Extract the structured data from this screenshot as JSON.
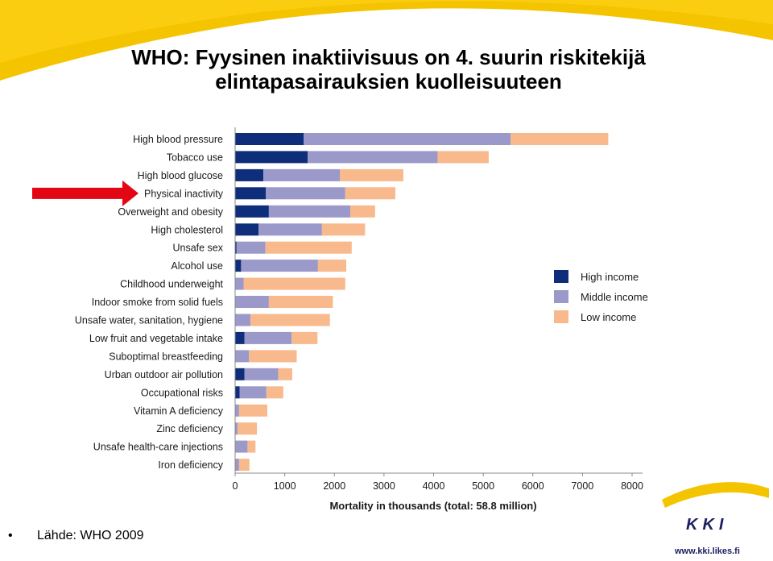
{
  "title": {
    "line1": "WHO: Fyysinen inaktiivisuus on 4. suurin riskitekijä",
    "line2": "elintapasairauksien kuolleisuuteen"
  },
  "source": {
    "bullet": "•",
    "text": "Lähde:  WHO 2009"
  },
  "logo": {
    "text": "KKI"
  },
  "site": {
    "url": "www.kki.likes.fi"
  },
  "colors": {
    "accent_yellow": "#f5c400",
    "arrow_red": "#e30613",
    "high": "#0e2d7a",
    "middle": "#9b99c9",
    "low": "#f8b98d",
    "logo_blue": "#1b1f5e"
  },
  "highlight": {
    "category": "Physical inactivity",
    "marker": "red-arrow"
  },
  "chart_data": {
    "type": "bar",
    "orientation": "horizontal",
    "stacked": true,
    "categories": [
      "High blood pressure",
      "Tobacco use",
      "High blood glucose",
      "Physical inactivity",
      "Overweight and obesity",
      "High cholesterol",
      "Unsafe sex",
      "Alcohol use",
      "Childhood underweight",
      "Indoor smoke from solid fuels",
      "Unsafe water, sanitation, hygiene",
      "Low fruit and vegetable intake",
      "Suboptimal breastfeeding",
      "Urban outdoor air pollution",
      "Occupational risks",
      "Vitamin A deficiency",
      "Zinc deficiency",
      "Unsafe health-care injections",
      "Iron deficiency"
    ],
    "series": [
      {
        "name": "High income",
        "values": [
          1380,
          1460,
          570,
          620,
          680,
          470,
          30,
          120,
          0,
          0,
          0,
          190,
          0,
          190,
          90,
          0,
          0,
          0,
          0
        ]
      },
      {
        "name": "Middle income",
        "values": [
          4170,
          2620,
          1540,
          1600,
          1640,
          1280,
          580,
          1550,
          170,
          680,
          310,
          950,
          280,
          680,
          540,
          80,
          50,
          250,
          80
        ]
      },
      {
        "name": "Low income",
        "values": [
          1970,
          1030,
          1280,
          1010,
          500,
          870,
          1740,
          570,
          2050,
          1290,
          1600,
          520,
          960,
          280,
          340,
          570,
          390,
          160,
          210
        ]
      }
    ],
    "xlabel": "Mortality in thousands (total: 58.8 million)",
    "xlim": [
      0,
      8000
    ],
    "xticks": [
      0,
      1000,
      2000,
      3000,
      4000,
      5000,
      6000,
      7000,
      8000
    ],
    "grid": false,
    "legend_position": "right"
  }
}
